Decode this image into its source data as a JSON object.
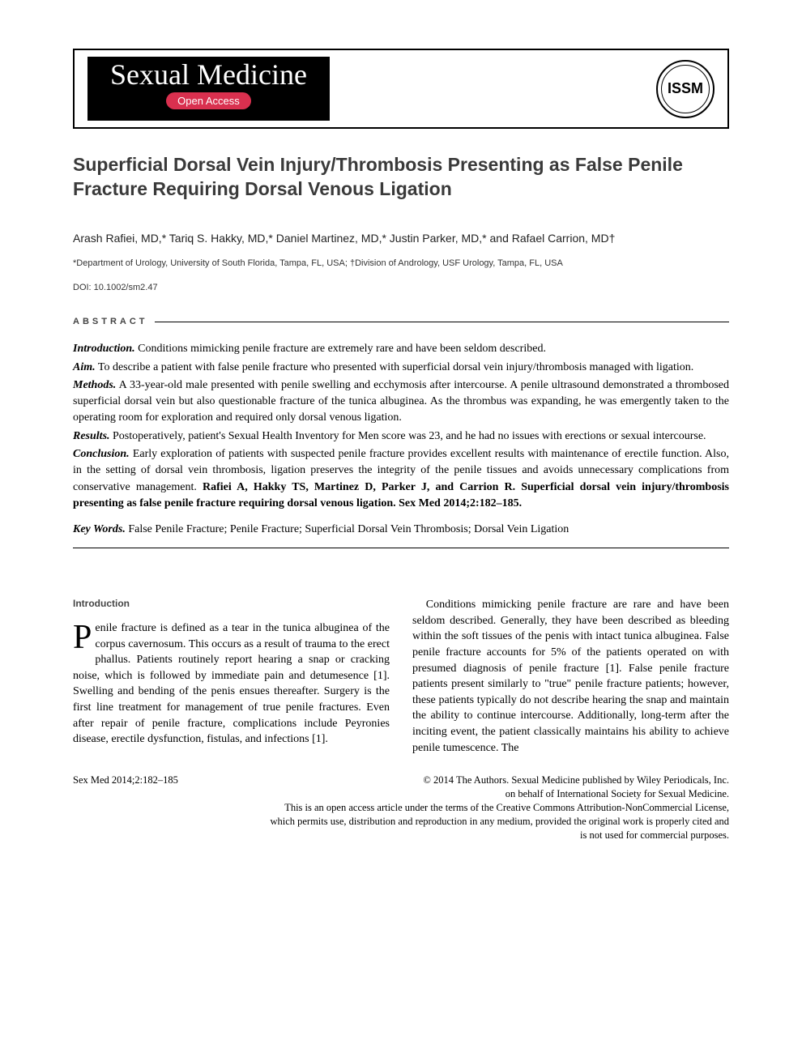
{
  "journal": {
    "name": "Sexual Medicine",
    "badge": "Open Access",
    "society_abbr": "ISSM"
  },
  "article": {
    "title": "Superficial Dorsal Vein Injury/Thrombosis Presenting as False Penile Fracture Requiring Dorsal Venous Ligation",
    "authors": "Arash Rafiei, MD,* Tariq S. Hakky, MD,* Daniel Martinez, MD,* Justin Parker, MD,* and Rafael Carrion, MD†",
    "affiliations": "*Department of Urology, University of South Florida, Tampa, FL, USA; †Division of Andrology, USF Urology, Tampa, FL, USA",
    "doi": "DOI: 10.1002/sm2.47"
  },
  "abstract": {
    "heading": "ABSTRACT",
    "introduction_label": "Introduction.",
    "introduction_text": " Conditions mimicking penile fracture are extremely rare and have been seldom described.",
    "aim_label": "Aim.",
    "aim_text": " To describe a patient with false penile fracture who presented with superficial dorsal vein injury/thrombosis managed with ligation.",
    "methods_label": "Methods.",
    "methods_text": " A 33-year-old male presented with penile swelling and ecchymosis after intercourse. A penile ultrasound demonstrated a thrombosed superficial dorsal vein but also questionable fracture of the tunica albuginea. As the thrombus was expanding, he was emergently taken to the operating room for exploration and required only dorsal venous ligation.",
    "results_label": "Results.",
    "results_text": " Postoperatively, patient's Sexual Health Inventory for Men score was 23, and he had no issues with erections or sexual intercourse.",
    "conclusion_label": "Conclusion.",
    "conclusion_text": " Early exploration of patients with suspected penile fracture provides excellent results with maintenance of erectile function. Also, in the setting of dorsal vein thrombosis, ligation preserves the integrity of the penile tissues and avoids unnecessary complications from conservative management. ",
    "citation": "Rafiei A, Hakky TS, Martinez D, Parker J, and Carrion R. Superficial dorsal vein injury/thrombosis presenting as false penile fracture requiring dorsal venous ligation. Sex Med 2014;2:182–185.",
    "keywords_label": "Key Words.",
    "keywords_text": " False Penile Fracture; Penile Fracture; Superficial Dorsal Vein Thrombosis; Dorsal Vein Ligation"
  },
  "body": {
    "intro_heading": "Introduction",
    "dropcap": "P",
    "para1": "enile fracture is defined as a tear in the tunica albuginea of the corpus cavernosum. This occurs as a result of trauma to the erect phallus. Patients routinely report hearing a snap or cracking noise, which is followed by immediate pain and detumesence [1]. Swelling and bending of the penis ensues thereafter. Surgery is the first line treatment for management of true penile fractures. Even after repair of penile fracture, complications include Peyronies disease, erectile dysfunction, fistulas, and infections [1].",
    "para2": "Conditions mimicking penile fracture are rare and have been seldom described. Generally, they have been described as bleeding within the soft tissues of the penis with intact tunica albuginea. False penile fracture accounts for 5% of the patients operated on with presumed diagnosis of penile fracture [1]. False penile fracture patients present similarly to \"true\" penile fracture patients; however, these patients typically do not describe hearing the snap and maintain the ability to continue intercourse. Additionally, long-term after the inciting event, the patient classically maintains his ability to achieve penile tumescence. The"
  },
  "footer": {
    "left": "Sex Med 2014;2:182–185",
    "right1": "© 2014 The Authors. Sexual Medicine published by Wiley Periodicals, Inc.",
    "right2": "on behalf of International Society for Sexual Medicine.",
    "license1": "This is an open access article under the terms of the Creative Commons Attribution-NonCommercial License,",
    "license2": "which permits use, distribution and reproduction in any medium, provided the original work is properly cited and",
    "license3": "is not used for commercial purposes."
  },
  "style": {
    "page_bg": "#ffffff",
    "title_color": "#3a3a3a",
    "badge_bg": "#d9304f",
    "heading_color": "#444444"
  }
}
